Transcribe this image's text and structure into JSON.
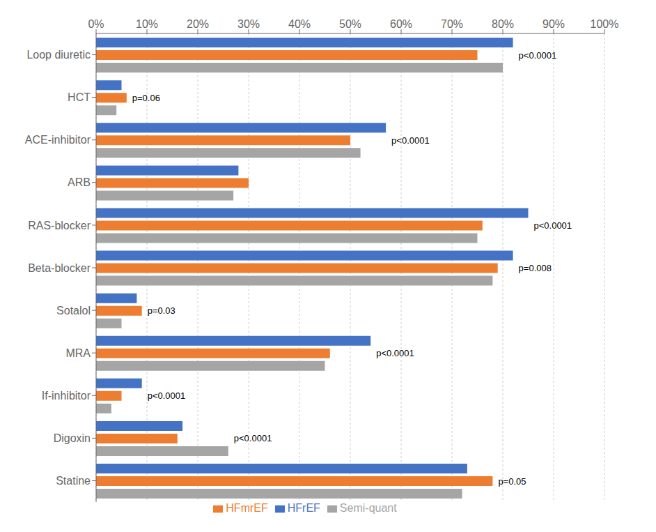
{
  "chart_data": {
    "type": "bar",
    "orientation": "horizontal",
    "categories": [
      "Loop diuretic",
      "HCT",
      "ACE-inhibitor",
      "ARB",
      "RAS-blocker",
      "Beta-blocker",
      "Sotalol",
      "MRA",
      "If-inhibitor",
      "Digoxin",
      "Statine"
    ],
    "series": [
      {
        "name": "HFrEF",
        "color": "#4472C4",
        "values": [
          82,
          5,
          57,
          28,
          85,
          82,
          8,
          54,
          9,
          17,
          73
        ]
      },
      {
        "name": "HFmrEF",
        "color": "#ED7D31",
        "values": [
          75,
          6,
          50,
          30,
          76,
          79,
          9,
          46,
          5,
          16,
          78
        ]
      },
      {
        "name": "Semi-quant",
        "color": "#A5A5A5",
        "values": [
          80,
          4,
          52,
          27,
          75,
          78,
          5,
          45,
          3,
          26,
          72
        ]
      }
    ],
    "xlim": [
      0,
      100
    ],
    "xticks": [
      {
        "value": 0,
        "label": "0%"
      },
      {
        "value": 10,
        "label": "10%"
      },
      {
        "value": 20,
        "label": "20%"
      },
      {
        "value": 30,
        "label": "30%"
      },
      {
        "value": 40,
        "label": "40%"
      },
      {
        "value": 50,
        "label": "50%"
      },
      {
        "value": 60,
        "label": "60%"
      },
      {
        "value": 70,
        "label": "70%"
      },
      {
        "value": 80,
        "label": "80%"
      },
      {
        "value": 90,
        "label": "90%"
      },
      {
        "value": 100,
        "label": "100%"
      }
    ],
    "grid": true,
    "legend": "bottom",
    "annotations": [
      {
        "text": "p<0.0001",
        "category": "Loop diuretic"
      },
      {
        "text": "p=0.06",
        "category": "HCT"
      },
      {
        "text": "p<0.0001",
        "category": "ACE-inhibitor"
      },
      {
        "text": "p<0.0001",
        "category": "RAS-blocker"
      },
      {
        "text": "p=0.008",
        "category": "Beta-blocker"
      },
      {
        "text": "p=0.03",
        "category": "Sotalol"
      },
      {
        "text": "p<0.0001",
        "category": "MRA"
      },
      {
        "text": "p<0.0001",
        "category": "If-inhibitor"
      },
      {
        "text": "p<0.0001",
        "category": "Digoxin"
      },
      {
        "text": "p=0.05",
        "category": "Statine"
      }
    ]
  }
}
